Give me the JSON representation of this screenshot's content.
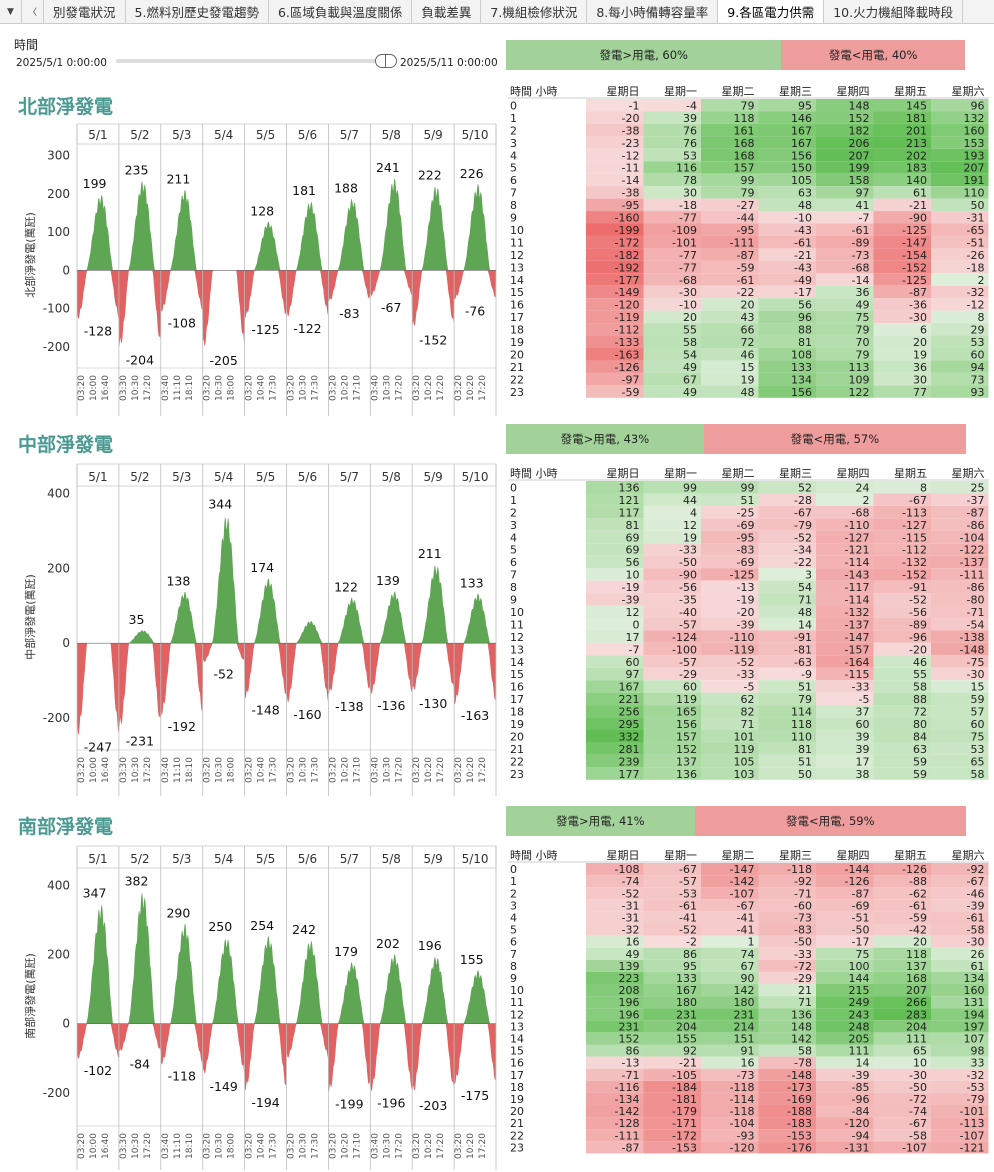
{
  "tabs": [
    "別發電狀況",
    "5.燃料別歷史發電趨勢",
    "6.區域負載與溫度關係",
    "負載差異",
    "7.機組檢修狀況",
    "8.每小時備轉容量率",
    "9.各區電力供需",
    "10.火力機組降載時段"
  ],
  "active_tab": 6,
  "tab_controls": {
    "down": "▼",
    "left": "〈"
  },
  "slicer": {
    "label": "時間",
    "start": "2025/5/1 0:00:00",
    "end": "2025/5/11 0:00:00"
  },
  "colors": {
    "positive": "#5ea653",
    "negative": "#e06262",
    "title": "#4a9a92"
  },
  "day_labels": [
    "5/1",
    "5/2",
    "5/3",
    "5/4",
    "5/5",
    "5/6",
    "5/7",
    "5/8",
    "5/9",
    "5/10"
  ],
  "time_ticks": [
    [
      "03:20",
      "10:00",
      "16:40"
    ],
    [
      "03:30",
      "10:30",
      "17:20"
    ],
    [
      "03:40",
      "11:10",
      "18:10"
    ],
    [
      "03:20",
      "10:30",
      "18:00"
    ],
    [
      "03:20",
      "10:40",
      "17:30"
    ],
    [
      "03:20",
      "10:30",
      "17:30"
    ],
    [
      "03:20",
      "10:20",
      "17:10"
    ],
    [
      "03:40",
      "10:30",
      "17:20"
    ],
    [
      "03:20",
      "10:20",
      "17:20"
    ],
    [
      "03:20",
      "10:20",
      "17:20"
    ]
  ],
  "heat_header": {
    "hour": "時間 小時",
    "days": [
      "星期日",
      "星期一",
      "星期二",
      "星期三",
      "星期四",
      "星期五",
      "星期六"
    ]
  },
  "regions": [
    {
      "title": "北部淨發電",
      "ylabel": "北部淨發電(萬瓩)",
      "ratio": {
        "pos_label": "發電>用電, 60%",
        "pos_pct": 60,
        "neg_label": "發電<用電, 40%",
        "neg_pct": 40
      },
      "chart_data": {
        "type": "area",
        "ylim": [
          -250,
          330
        ],
        "yticks": [
          300,
          200,
          100,
          0,
          -100,
          -200
        ],
        "x": [
          "5/1",
          "5/2",
          "5/3",
          "5/4",
          "5/5",
          "5/6",
          "5/7",
          "5/8",
          "5/9",
          "5/10"
        ],
        "series": [
          {
            "name": "daily_max",
            "values": [
              199,
              235,
              211,
              0,
              128,
              181,
              188,
              241,
              222,
              226
            ]
          },
          {
            "name": "daily_min",
            "values": [
              -128,
              -204,
              -108,
              -205,
              -125,
              -122,
              -83,
              -67,
              -152,
              -76
            ]
          }
        ],
        "max_labels": [
          "199",
          "235",
          "211",
          "",
          "128",
          "181",
          "188",
          "241",
          "222",
          "226"
        ],
        "min_labels": [
          "-128",
          "-204",
          "-108",
          "-205",
          "-125",
          "-122",
          "-83",
          "-67",
          "-152",
          "-76"
        ]
      },
      "heatmap": [
        [
          -1,
          -4,
          79,
          95,
          148,
          145,
          96
        ],
        [
          -20,
          39,
          118,
          146,
          152,
          181,
          132
        ],
        [
          -38,
          76,
          161,
          167,
          182,
          201,
          160
        ],
        [
          -23,
          76,
          168,
          167,
          206,
          213,
          153
        ],
        [
          -12,
          53,
          168,
          156,
          207,
          202,
          193
        ],
        [
          -11,
          116,
          157,
          150,
          199,
          183,
          207
        ],
        [
          -14,
          78,
          99,
          105,
          158,
          140,
          191
        ],
        [
          -38,
          30,
          79,
          63,
          97,
          61,
          110
        ],
        [
          -95,
          -18,
          -27,
          48,
          41,
          -21,
          50
        ],
        [
          -160,
          -77,
          -44,
          -10,
          -7,
          -90,
          -31
        ],
        [
          -199,
          -109,
          -95,
          -43,
          -61,
          -125,
          -65
        ],
        [
          -172,
          -101,
          -111,
          -61,
          -89,
          -147,
          -51
        ],
        [
          -182,
          -77,
          -87,
          -21,
          -73,
          -154,
          -26
        ],
        [
          -192,
          -77,
          -59,
          -43,
          -68,
          -152,
          -18
        ],
        [
          -177,
          -68,
          -61,
          -49,
          -14,
          -125,
          2
        ],
        [
          -149,
          -30,
          -22,
          -17,
          36,
          -87,
          -32
        ],
        [
          -120,
          -10,
          20,
          56,
          49,
          -36,
          -12
        ],
        [
          -119,
          20,
          43,
          96,
          75,
          -30,
          8
        ],
        [
          -112,
          55,
          66,
          88,
          79,
          6,
          29
        ],
        [
          -133,
          58,
          72,
          81,
          70,
          20,
          53
        ],
        [
          -163,
          54,
          46,
          108,
          79,
          19,
          60
        ],
        [
          -126,
          49,
          15,
          133,
          113,
          36,
          94
        ],
        [
          -97,
          67,
          19,
          134,
          109,
          30,
          73
        ],
        [
          -59,
          49,
          48,
          156,
          122,
          77,
          93
        ]
      ]
    },
    {
      "title": "中部淨發電",
      "ylabel": "中部淨發電(萬瓩)",
      "ratio": {
        "pos_label": "發電>用電, 43%",
        "pos_pct": 43,
        "neg_label": "發電<用電, 57%",
        "neg_pct": 57
      },
      "chart_data": {
        "type": "area",
        "ylim": [
          -280,
          420
        ],
        "yticks": [
          400,
          200,
          0,
          -200
        ],
        "x": [
          "5/1",
          "5/2",
          "5/3",
          "5/4",
          "5/5",
          "5/6",
          "5/7",
          "5/8",
          "5/9",
          "5/10"
        ],
        "series": [
          {
            "name": "daily_max",
            "values": [
              0,
              35,
              138,
              344,
              174,
              60,
              122,
              139,
              211,
              133
            ]
          },
          {
            "name": "daily_min",
            "values": [
              -247,
              -231,
              -192,
              -52,
              -148,
              -160,
              -138,
              -136,
              -130,
              -163
            ]
          }
        ],
        "max_labels": [
          "",
          "35",
          "138",
          "344",
          "174",
          "",
          "122",
          "139",
          "211",
          "133"
        ],
        "min_labels": [
          "-247",
          "-231",
          "-192",
          "-52",
          "-148",
          "-160",
          "-138",
          "-136",
          "-130",
          "-163"
        ]
      },
      "heatmap": [
        [
          136,
          99,
          99,
          52,
          24,
          8,
          25
        ],
        [
          121,
          44,
          51,
          -28,
          2,
          -67,
          -37
        ],
        [
          117,
          4,
          -25,
          -67,
          -68,
          -113,
          -87
        ],
        [
          81,
          12,
          -69,
          -79,
          -110,
          -127,
          -86
        ],
        [
          69,
          19,
          -95,
          -52,
          -127,
          -115,
          -104
        ],
        [
          69,
          -33,
          -83,
          -34,
          -121,
          -112,
          -122
        ],
        [
          56,
          -50,
          -69,
          -22,
          -114,
          -132,
          -137
        ],
        [
          10,
          -90,
          -125,
          3,
          -143,
          -152,
          -111
        ],
        [
          -19,
          -56,
          -13,
          54,
          -117,
          -91,
          -86
        ],
        [
          -39,
          -35,
          -19,
          71,
          -114,
          -52,
          -80
        ],
        [
          12,
          -40,
          -20,
          48,
          -132,
          -56,
          -71
        ],
        [
          0,
          -57,
          -39,
          14,
          -137,
          -89,
          -54
        ],
        [
          17,
          -124,
          -110,
          -91,
          -147,
          -96,
          -138
        ],
        [
          -7,
          -100,
          -119,
          -81,
          -157,
          -20,
          -148
        ],
        [
          60,
          -57,
          -52,
          -63,
          -164,
          46,
          -75
        ],
        [
          97,
          -29,
          -33,
          -9,
          -115,
          55,
          -30
        ],
        [
          167,
          60,
          -5,
          51,
          -33,
          58,
          15
        ],
        [
          221,
          119,
          62,
          79,
          -5,
          88,
          59
        ],
        [
          256,
          165,
          82,
          114,
          37,
          72,
          57
        ],
        [
          295,
          156,
          71,
          118,
          60,
          80,
          60
        ],
        [
          332,
          157,
          101,
          110,
          39,
          84,
          75
        ],
        [
          281,
          152,
          119,
          81,
          39,
          63,
          53
        ],
        [
          239,
          137,
          105,
          51,
          17,
          59,
          65
        ],
        [
          177,
          136,
          103,
          50,
          38,
          59,
          58
        ]
      ]
    },
    {
      "title": "南部淨發電",
      "ylabel": "南部淨發電(萬瓩)",
      "ratio": {
        "pos_label": "發電>用電, 41%",
        "pos_pct": 41,
        "neg_label": "發電<用電, 59%",
        "neg_pct": 59
      },
      "chart_data": {
        "type": "area",
        "ylim": [
          -290,
          450
        ],
        "yticks": [
          400,
          200,
          0,
          -200
        ],
        "x": [
          "5/1",
          "5/2",
          "5/3",
          "5/4",
          "5/5",
          "5/6",
          "5/7",
          "5/8",
          "5/9",
          "5/10"
        ],
        "series": [
          {
            "name": "daily_max",
            "values": [
              347,
              382,
              290,
              250,
              254,
              242,
              179,
              202,
              196,
              155
            ]
          },
          {
            "name": "daily_min",
            "values": [
              -102,
              -84,
              -118,
              -149,
              -194,
              -100,
              -199,
              -196,
              -203,
              -175
            ]
          }
        ],
        "max_labels": [
          "347",
          "382",
          "290",
          "250",
          "254",
          "242",
          "179",
          "202",
          "196",
          "155"
        ],
        "min_labels": [
          "-102",
          "-84",
          "-118",
          "-149",
          "-194",
          "",
          "-199",
          "-196",
          "-203",
          "-175"
        ]
      },
      "heatmap": [
        [
          -108,
          -67,
          -147,
          -118,
          -144,
          -126,
          -92
        ],
        [
          -74,
          -57,
          -142,
          -92,
          -126,
          -88,
          -67
        ],
        [
          -52,
          -53,
          -107,
          -71,
          -87,
          -62,
          -46
        ],
        [
          -31,
          -61,
          -67,
          -60,
          -69,
          -61,
          -39
        ],
        [
          -31,
          -41,
          -41,
          -73,
          -51,
          -59,
          -61
        ],
        [
          -32,
          -52,
          -41,
          -83,
          -50,
          -42,
          -58
        ],
        [
          16,
          -2,
          1,
          -50,
          -17,
          20,
          -30
        ],
        [
          49,
          86,
          74,
          -33,
          75,
          118,
          26
        ],
        [
          139,
          95,
          67,
          -72,
          100,
          137,
          61
        ],
        [
          223,
          133,
          90,
          -29,
          144,
          168,
          134
        ],
        [
          208,
          167,
          142,
          21,
          215,
          207,
          160
        ],
        [
          196,
          180,
          180,
          71,
          249,
          266,
          131
        ],
        [
          196,
          231,
          231,
          136,
          243,
          283,
          194
        ],
        [
          231,
          204,
          214,
          148,
          248,
          204,
          197
        ],
        [
          152,
          155,
          151,
          142,
          205,
          111,
          107
        ],
        [
          86,
          92,
          91,
          58,
          111,
          65,
          98
        ],
        [
          -13,
          -21,
          16,
          -78,
          14,
          10,
          33
        ],
        [
          -71,
          -105,
          -73,
          -148,
          -39,
          -30,
          -32
        ],
        [
          -116,
          -184,
          -118,
          -173,
          -85,
          -50,
          -53
        ],
        [
          -134,
          -181,
          -114,
          -169,
          -96,
          -72,
          -79
        ],
        [
          -142,
          -179,
          -118,
          -188,
          -84,
          -74,
          -101
        ],
        [
          -128,
          -171,
          -104,
          -183,
          -120,
          -67,
          -113
        ],
        [
          -111,
          -172,
          -93,
          -153,
          -94,
          -58,
          -107
        ],
        [
          -87,
          -153,
          -120,
          -176,
          -131,
          -107,
          -121
        ]
      ]
    }
  ]
}
